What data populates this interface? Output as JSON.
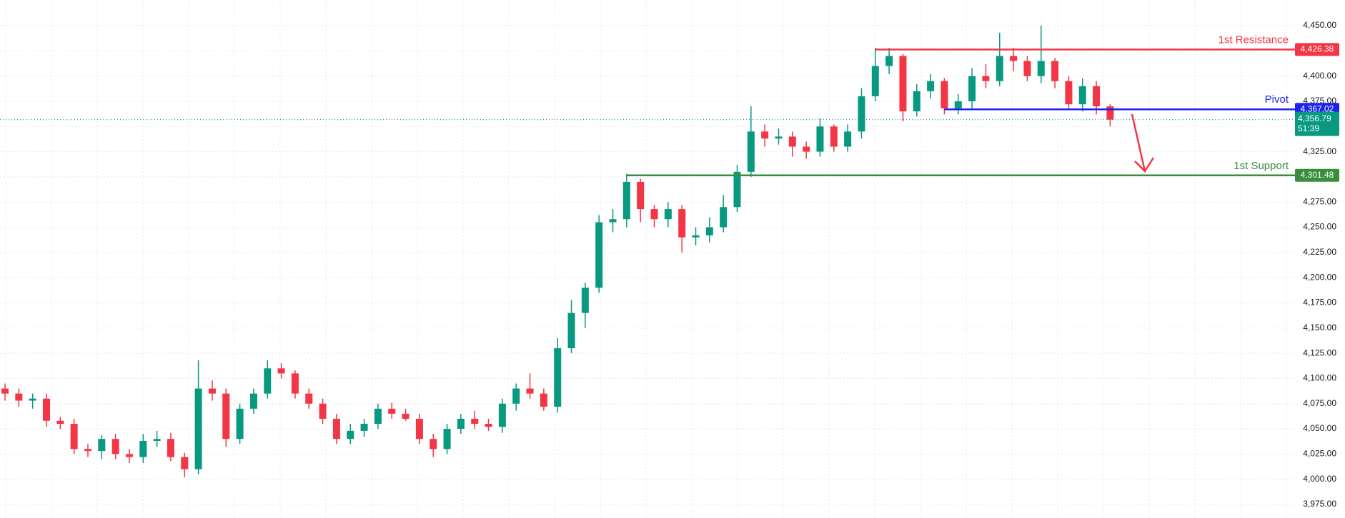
{
  "chart_data": {
    "type": "candlestick",
    "up_color": "#089981",
    "down_color": "#f23645",
    "open": [
      4090,
      4085,
      4078,
      4080,
      4058,
      4055,
      4030,
      4028,
      4040,
      4025,
      4022,
      4038,
      4040,
      4022,
      4010,
      4090,
      4085,
      4040,
      4070,
      4085,
      4110,
      4105,
      4085,
      4075,
      4060,
      4040,
      4048,
      4055,
      4070,
      4065,
      4060,
      4040,
      4030,
      4050,
      4060,
      4055,
      4052,
      4075,
      4090,
      4085,
      4072,
      4130,
      4165,
      4190,
      4255,
      4258,
      4295,
      4268,
      4258,
      4268,
      4240,
      4242,
      4250,
      4270,
      4305,
      4345,
      4338,
      4340,
      4330,
      4325,
      4350,
      4330,
      4345,
      4380,
      4410,
      4420,
      4365,
      4385,
      4395,
      4368,
      4375,
      4400,
      4395,
      4420,
      4415,
      4400,
      4415,
      4395,
      4372,
      4390,
      4370
    ],
    "high": [
      4095,
      4090,
      4085,
      4085,
      4062,
      4060,
      4035,
      4044,
      4045,
      4030,
      4045,
      4048,
      4046,
      4026,
      4118,
      4098,
      4090,
      4075,
      4090,
      4118,
      4115,
      4108,
      4090,
      4080,
      4065,
      4055,
      4060,
      4075,
      4076,
      4070,
      4065,
      4045,
      4055,
      4065,
      4068,
      4060,
      4080,
      4095,
      4105,
      4090,
      4140,
      4178,
      4195,
      4262,
      4268,
      4303,
      4298,
      4272,
      4275,
      4272,
      4250,
      4260,
      4282,
      4312,
      4370,
      4352,
      4348,
      4345,
      4335,
      4358,
      4352,
      4352,
      4388,
      4428,
      4428,
      4422,
      4392,
      4402,
      4398,
      4382,
      4408,
      4412,
      4443,
      4428,
      4420,
      4450,
      4418,
      4400,
      4398,
      4395,
      4372
    ],
    "low": [
      4078,
      4072,
      4070,
      4052,
      4050,
      4025,
      4022,
      4020,
      4020,
      4016,
      4016,
      4032,
      4018,
      4002,
      4005,
      4078,
      4032,
      4035,
      4065,
      4080,
      4100,
      4080,
      4070,
      4055,
      4035,
      4035,
      4042,
      4050,
      4060,
      4058,
      4035,
      4022,
      4025,
      4045,
      4050,
      4048,
      4046,
      4068,
      4080,
      4068,
      4066,
      4125,
      4150,
      4185,
      4245,
      4250,
      4255,
      4250,
      4250,
      4225,
      4232,
      4235,
      4245,
      4265,
      4300,
      4330,
      4332,
      4320,
      4318,
      4320,
      4325,
      4325,
      4338,
      4375,
      4402,
      4355,
      4360,
      4378,
      4362,
      4362,
      4368,
      4388,
      4390,
      4405,
      4395,
      4393,
      4388,
      4368,
      4365,
      4362,
      4350
    ],
    "close": [
      4085,
      4078,
      4080,
      4058,
      4055,
      4030,
      4028,
      4040,
      4025,
      4022,
      4038,
      4040,
      4022,
      4010,
      4090,
      4085,
      4040,
      4070,
      4085,
      4110,
      4105,
      4085,
      4075,
      4060,
      4040,
      4048,
      4055,
      4070,
      4065,
      4060,
      4040,
      4030,
      4050,
      4060,
      4055,
      4052,
      4075,
      4090,
      4085,
      4072,
      4130,
      4165,
      4190,
      4255,
      4258,
      4295,
      4268,
      4258,
      4268,
      4240,
      4242,
      4250,
      4270,
      4305,
      4345,
      4338,
      4340,
      4330,
      4325,
      4350,
      4330,
      4345,
      4380,
      4410,
      4420,
      4365,
      4385,
      4395,
      4368,
      4375,
      4400,
      4395,
      4420,
      4415,
      4400,
      4415,
      4395,
      4372,
      4390,
      4370,
      4356.79
    ],
    "ylim": [
      3975,
      4450
    ],
    "yticks": [
      {
        "value": 3975,
        "label": "3,975.00"
      },
      {
        "value": 4000,
        "label": "4,000.00"
      },
      {
        "value": 4025,
        "label": "4,025.00"
      },
      {
        "value": 4050,
        "label": "4,050.00"
      },
      {
        "value": 4075,
        "label": "4,075.00"
      },
      {
        "value": 4100,
        "label": "4,100.00"
      },
      {
        "value": 4125,
        "label": "4,125.00"
      },
      {
        "value": 4150,
        "label": "4,150.00"
      },
      {
        "value": 4175,
        "label": "4,175.00"
      },
      {
        "value": 4200,
        "label": "4,200.00"
      },
      {
        "value": 4225,
        "label": "4,225.00"
      },
      {
        "value": 4250,
        "label": "4,250.00"
      },
      {
        "value": 4275,
        "label": "4,275.00"
      },
      {
        "value": 4300,
        "label": "4,300.00"
      },
      {
        "value": 4325,
        "label": "4,325.00"
      },
      {
        "value": 4350,
        "label": "4,350.00"
      },
      {
        "value": 4375,
        "label": "4,375.00"
      },
      {
        "value": 4400,
        "label": "4,400.00"
      },
      {
        "value": 4425,
        "label": "4,425.00"
      },
      {
        "value": 4450,
        "label": "4,450.00"
      }
    ],
    "grid": true,
    "levels": [
      {
        "name": "1st Resistance",
        "value": 4426.38,
        "label": "4,426.38",
        "color": "#f23645",
        "start": 63
      },
      {
        "name": "Pivot",
        "value": 4367.02,
        "label": "4,367.02",
        "color": "#1e22f0",
        "start": 68
      },
      {
        "name": "1st Support",
        "value": 4301.48,
        "label": "4,301.48",
        "color": "#388e3c",
        "start": 45
      }
    ],
    "last_price": {
      "value": 4356.79,
      "label": "4,356.79"
    },
    "countdown": "51:39"
  }
}
